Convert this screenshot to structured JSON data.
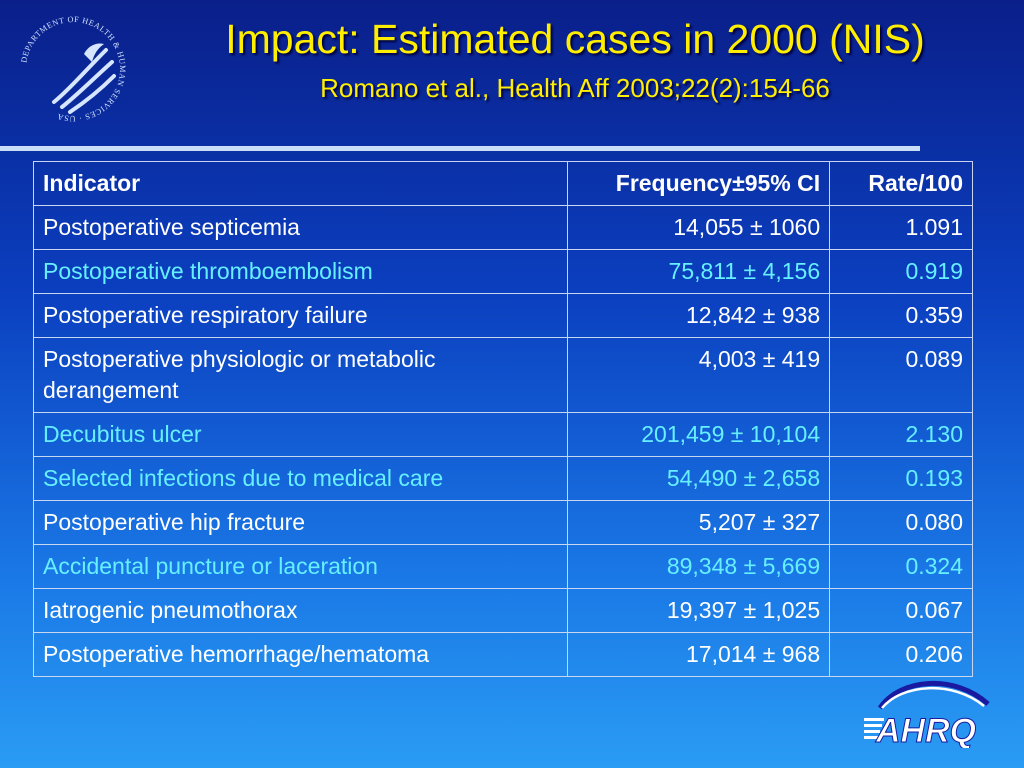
{
  "header": {
    "title": "Impact: Estimated cases in 2000 (NIS)",
    "subtitle": "Romano et al., Health Aff 2003;22(2):154-66"
  },
  "logos": {
    "hhs": {
      "icon": "hhs-eagle-seal-icon",
      "ring_text": "DEPARTMENT OF HEALTH & HUMAN SERVICES · USA"
    },
    "ahrq": {
      "icon": "ahrq-logo-icon",
      "text": "AHRQ"
    }
  },
  "colors": {
    "title": "#ffee00",
    "text": "#ffffff",
    "highlight_row": "#66f0ff"
  },
  "table": {
    "headers": [
      "Indicator",
      "Frequency±95% CI",
      "Rate/100"
    ],
    "rows": [
      {
        "indicator": "Postoperative septicemia",
        "frequency": "14,055 ± 1060",
        "rate": "1.091",
        "highlight": false
      },
      {
        "indicator": "Postoperative thromboembolism",
        "frequency": "75,811 ± 4,156",
        "rate": "0.919",
        "highlight": true
      },
      {
        "indicator": "Postoperative respiratory failure",
        "frequency": "12,842 ± 938",
        "rate": "0.359",
        "highlight": false
      },
      {
        "indicator": "Postoperative physiologic or metabolic derangement",
        "frequency": "4,003 ± 419",
        "rate": "0.089",
        "highlight": false
      },
      {
        "indicator": "Decubitus ulcer",
        "frequency": "201,459 ± 10,104",
        "rate": "2.130",
        "highlight": true
      },
      {
        "indicator": "Selected infections due to medical care",
        "frequency": "54,490 ± 2,658",
        "rate": "0.193",
        "highlight": true
      },
      {
        "indicator": "Postoperative hip fracture",
        "frequency": "5,207 ± 327",
        "rate": "0.080",
        "highlight": false
      },
      {
        "indicator": "Accidental puncture or laceration",
        "frequency": "89,348 ± 5,669",
        "rate": "0.324",
        "highlight": true
      },
      {
        "indicator": "Iatrogenic pneumothorax",
        "frequency": "19,397 ± 1,025",
        "rate": "0.067",
        "highlight": false
      },
      {
        "indicator": "Postoperative hemorrhage/hematoma",
        "frequency": "17,014 ± 968",
        "rate": "0.206",
        "highlight": false
      }
    ]
  }
}
